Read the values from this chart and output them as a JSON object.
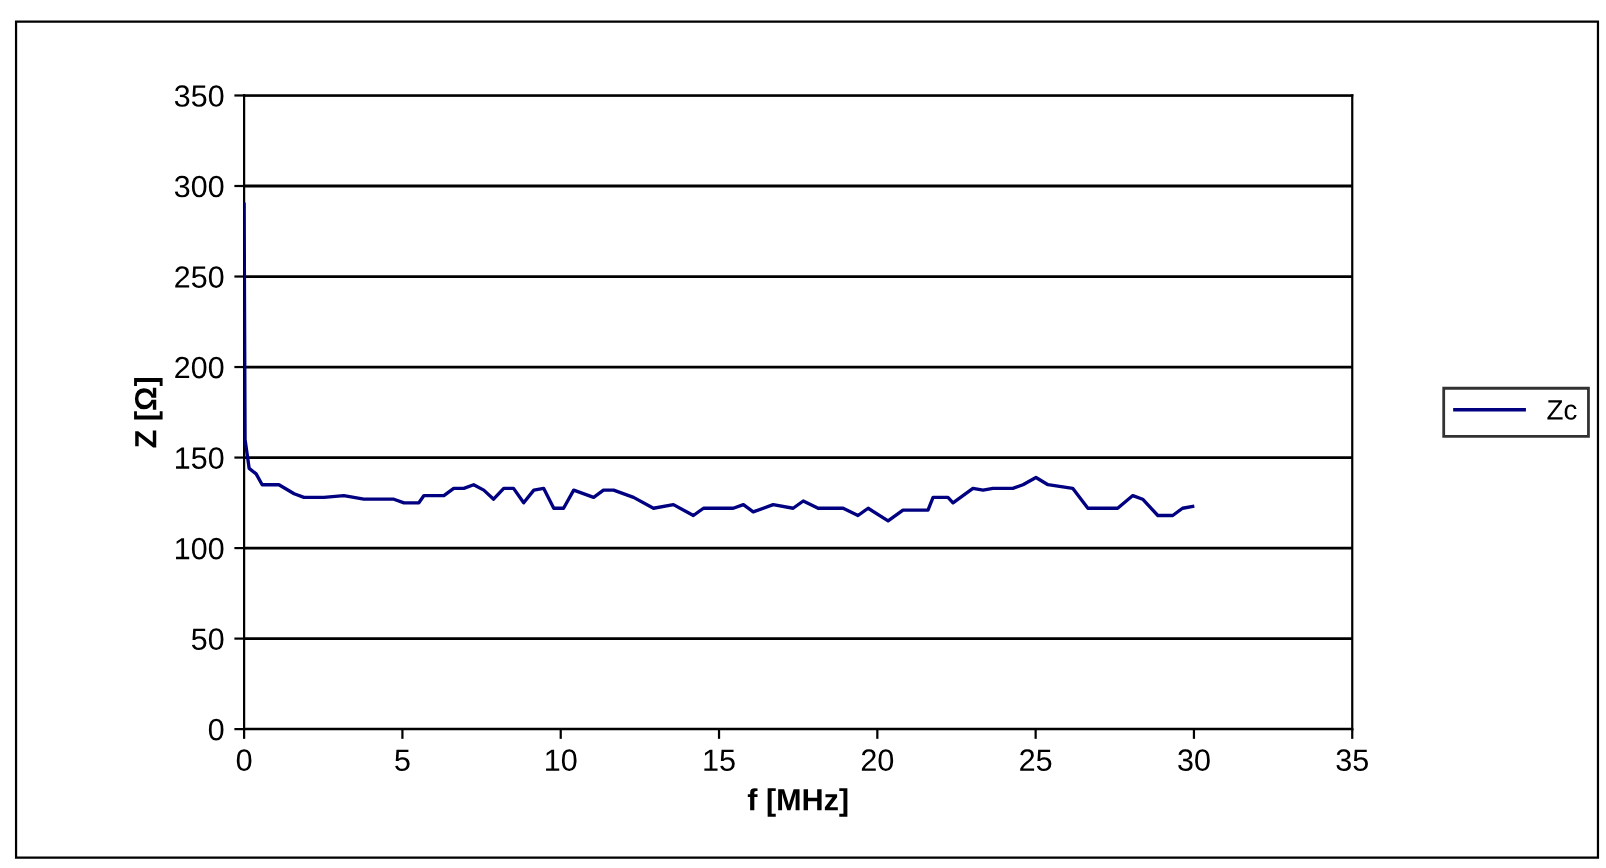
{
  "chart_data": {
    "type": "line",
    "xlabel": "f [MHz]",
    "ylabel": "Z [Ω]",
    "xlim": [
      0,
      35
    ],
    "xticks": [
      0,
      5,
      10,
      15,
      20,
      25,
      30,
      35
    ],
    "ylim": [
      0,
      350
    ],
    "yticks": [
      0,
      50,
      100,
      150,
      200,
      250,
      300,
      350
    ],
    "grid": "y",
    "legend": "right",
    "marker": "none",
    "line_style": "solid",
    "series": [
      {
        "name": "Zc",
        "color": "#000080",
        "x": [
          0,
          0.03,
          0.16,
          0.38,
          0.57,
          1.1,
          1.58,
          1.89,
          2.52,
          3.15,
          3.78,
          4.73,
          5.05,
          5.52,
          5.68,
          6.31,
          6.62,
          6.94,
          7.25,
          7.57,
          7.88,
          8.2,
          8.51,
          8.83,
          9.15,
          9.46,
          9.78,
          10.09,
          10.41,
          11.04,
          11.35,
          11.67,
          12.3,
          12.93,
          13.56,
          14.19,
          14.51,
          15.45,
          15.77,
          16.08,
          16.71,
          17.34,
          17.66,
          18.13,
          18.92,
          19.39,
          19.71,
          20.34,
          20.81,
          21.6,
          21.76,
          22.23,
          22.39,
          23.02,
          23.34,
          23.65,
          24.28,
          24.6,
          25.01,
          25.39,
          26.17,
          26.65,
          27.59,
          28.07,
          28.38,
          28.86,
          29.33,
          29.64,
          29.96
        ],
        "values": [
          290,
          160,
          144,
          141,
          135,
          135,
          130,
          128,
          128,
          129,
          127,
          127,
          125,
          125,
          129,
          129,
          133,
          133,
          135,
          132,
          127,
          133,
          133,
          125,
          132,
          133,
          122,
          122,
          132,
          128,
          132,
          132,
          128,
          122,
          124,
          118,
          122,
          122,
          124,
          120,
          124,
          122,
          126,
          122,
          122,
          118,
          122,
          115,
          121,
          121,
          128,
          128,
          125,
          133,
          132,
          133,
          133,
          135,
          139,
          135,
          133,
          122,
          122,
          129,
          127,
          118,
          118,
          122,
          123
        ]
      }
    ]
  }
}
